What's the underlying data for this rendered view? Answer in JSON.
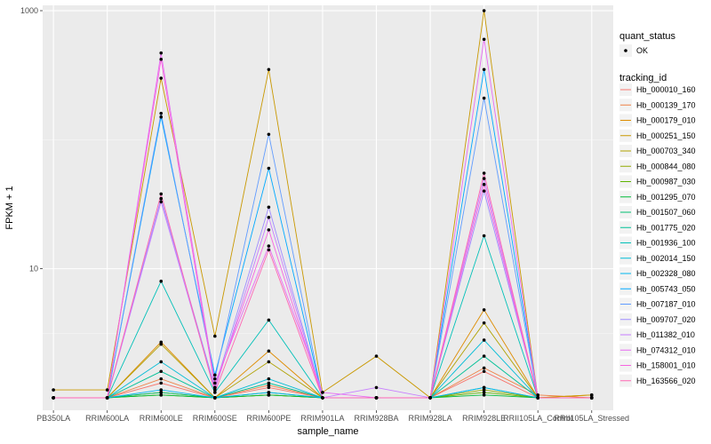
{
  "chart_data": {
    "type": "line",
    "title": "",
    "xlabel": "sample_name",
    "ylabel": "FPKM + 1",
    "y_scale": "log10",
    "ylim": [
      0.8,
      1100
    ],
    "y_ticks": [
      10,
      1000
    ],
    "y_tick_labels": [
      "10",
      "1000"
    ],
    "grid": true,
    "legend_position": "right",
    "categories": [
      "PB350LA",
      "RRIM600LA",
      "RRIM600LE",
      "RRIM600SE",
      "RRIM600PE",
      "RRIM901LA",
      "RRIM928BA",
      "RRIM928LA",
      "RRIM928LE",
      "RRII105LA_Control",
      "RRII105LA_Stressed"
    ],
    "quant_status": {
      "title": "quant_status",
      "entries": [
        "OK"
      ]
    },
    "legend_title": "tracking_id",
    "series": [
      {
        "name": "Hb_000010_160",
        "color": "#F8766D",
        "values": [
          1,
          1,
          1.3,
          1,
          1.2,
          1,
          1,
          1,
          1.6,
          1,
          1
        ]
      },
      {
        "name": "Hb_000139_170",
        "color": "#EE8044",
        "values": [
          1,
          1,
          1.4,
          1,
          1.25,
          1,
          1,
          1,
          1.7,
          1.05,
          1
        ]
      },
      {
        "name": "Hb_000179_010",
        "color": "#DE8C00",
        "values": [
          1,
          1,
          2.7,
          1,
          2.3,
          1,
          1,
          1,
          4.8,
          1,
          1.05
        ]
      },
      {
        "name": "Hb_000251_150",
        "color": "#C99800",
        "values": [
          1.15,
          1.15,
          300,
          3,
          350,
          1.1,
          2.1,
          1,
          1000,
          1,
          1.05
        ]
      },
      {
        "name": "Hb_000703_340",
        "color": "#B0A100",
        "values": [
          1,
          1,
          2.6,
          1,
          1.9,
          1,
          1,
          1,
          3.8,
          1,
          1
        ]
      },
      {
        "name": "Hb_000844_080",
        "color": "#90AA00",
        "values": [
          1,
          1,
          1.1,
          1,
          1.05,
          1,
          1,
          1,
          1.15,
          1,
          1
        ]
      },
      {
        "name": "Hb_000987_030",
        "color": "#5EB300",
        "values": [
          1,
          1,
          1.05,
          1,
          1.05,
          1,
          1,
          1,
          1.1,
          1,
          1
        ]
      },
      {
        "name": "Hb_001295_070",
        "color": "#00BA38",
        "values": [
          1,
          1,
          1.05,
          1,
          1.05,
          1,
          1,
          1,
          1.05,
          1,
          1
        ]
      },
      {
        "name": "Hb_001507_060",
        "color": "#00BE70",
        "values": [
          1,
          1,
          1.1,
          1,
          1.1,
          1,
          1,
          1,
          1.2,
          1,
          1
        ]
      },
      {
        "name": "Hb_001775_020",
        "color": "#00C097",
        "values": [
          1,
          1,
          1.6,
          1,
          1.3,
          1,
          1,
          1,
          2.1,
          1,
          1
        ]
      },
      {
        "name": "Hb_001936_100",
        "color": "#00C0B8",
        "values": [
          1,
          1,
          8,
          1.1,
          4,
          1,
          1,
          1,
          18,
          1,
          1
        ]
      },
      {
        "name": "Hb_002014_150",
        "color": "#00BCD6",
        "values": [
          1,
          1,
          1.9,
          1,
          1.4,
          1,
          1,
          1,
          2.8,
          1,
          1
        ]
      },
      {
        "name": "Hb_002328_080",
        "color": "#00B5EE",
        "values": [
          1,
          1,
          1.15,
          1,
          1.1,
          1,
          1,
          1,
          1.2,
          1,
          1
        ]
      },
      {
        "name": "Hb_005743_050",
        "color": "#00A9FF",
        "values": [
          1,
          1,
          150,
          1.5,
          60,
          1,
          1,
          1,
          350,
          1,
          1
        ]
      },
      {
        "name": "Hb_007187_010",
        "color": "#619CFF",
        "values": [
          1,
          1,
          160,
          1.4,
          110,
          1,
          1,
          1,
          210,
          1,
          1
        ]
      },
      {
        "name": "Hb_009707_020",
        "color": "#9F8CFF",
        "values": [
          1,
          1,
          35,
          1.2,
          30,
          1,
          1,
          1,
          40,
          1,
          1
        ]
      },
      {
        "name": "Hb_011382_010",
        "color": "#C77CFF",
        "values": [
          1,
          1,
          33,
          1.15,
          25,
          1,
          1.2,
          1,
          50,
          1,
          1
        ]
      },
      {
        "name": "Hb_074312_010",
        "color": "#E76BF3",
        "values": [
          1,
          1,
          470,
          1.3,
          15,
          1.1,
          1,
          1,
          600,
          1,
          1
        ]
      },
      {
        "name": "Hb_158001_010",
        "color": "#F763E0",
        "values": [
          1,
          1,
          420,
          1.2,
          20,
          1,
          1,
          1,
          45,
          1,
          1
        ]
      },
      {
        "name": "Hb_163566_020",
        "color": "#FF66B2",
        "values": [
          1,
          1,
          38,
          1.1,
          14,
          1,
          1,
          1,
          55,
          1,
          1
        ]
      }
    ]
  }
}
